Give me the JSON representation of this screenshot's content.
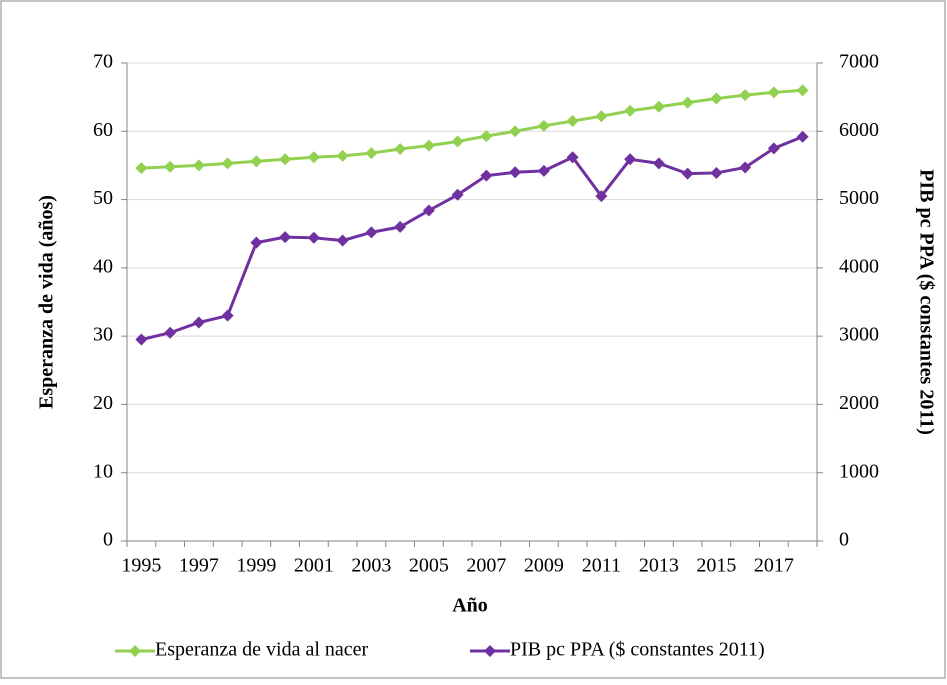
{
  "chart_data": {
    "type": "line",
    "x_label": "Año",
    "y_label": "Esperanza de vida (años)",
    "y2_label": "PIB pc PPA ($ constantes 2011)",
    "categories": [
      "1995",
      null,
      "1997",
      null,
      "1999",
      null,
      "2001",
      null,
      "2003",
      null,
      "2005",
      null,
      "2007",
      null,
      "2009",
      null,
      "2011",
      null,
      "2013",
      null,
      "2015",
      null,
      "2017",
      null
    ],
    "series": [
      {
        "name": "Esperanza de vida al nacer",
        "color": "#92d050",
        "values": [
          54.6,
          54.8,
          55.0,
          55.3,
          55.6,
          55.9,
          56.2,
          56.4,
          56.8,
          57.4,
          57.9,
          58.5,
          59.3,
          60.0,
          60.8,
          61.5,
          62.2,
          63.0,
          63.6,
          64.2,
          64.8,
          65.3,
          65.7,
          66.0
        ]
      },
      {
        "name": "PIB pc PPA ($ constantes 2011)",
        "color": "#7030a0",
        "axis": "y2",
        "values": [
          2950,
          3050,
          3200,
          3300,
          4370,
          4450,
          4440,
          4400,
          4520,
          4600,
          4840,
          5070,
          5350,
          5400,
          5420,
          5620,
          5050,
          5590,
          5530,
          5380,
          5390,
          5470,
          5750,
          5920
        ]
      }
    ],
    "ylim": [
      0,
      70
    ],
    "yticks": [
      0,
      10,
      20,
      30,
      40,
      50,
      60,
      70
    ],
    "y2lim": [
      0,
      7000
    ],
    "y2ticks": [
      0,
      1000,
      2000,
      3000,
      4000,
      5000,
      6000,
      7000
    ],
    "grid": true,
    "legend": "bottom"
  }
}
